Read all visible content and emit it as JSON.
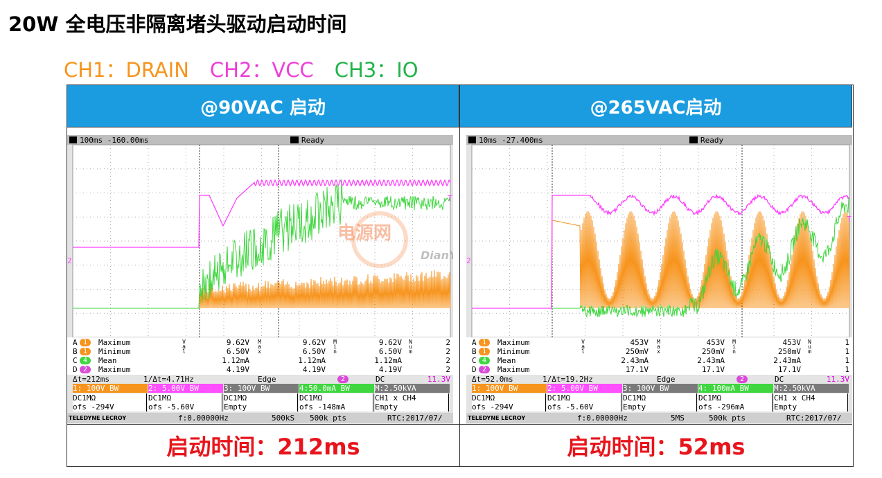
{
  "header": {
    "title": "20W 全电压非隔离堵头驱动启动时间"
  },
  "legend": [
    {
      "label": "CH1：DRAIN",
      "color": "#f7941d"
    },
    {
      "label": "CH2：VCC",
      "color": "#ee3fd9"
    },
    {
      "label": "CH3：IO",
      "color": "#22b34a"
    }
  ],
  "table": {
    "columns": [
      "@90VAC 启动",
      "@265VAC启动"
    ],
    "footer": [
      "启动时间：212ms",
      "启动时间：52ms"
    ]
  },
  "watermark": {
    "cn": "电源网",
    "en": "DianYuan.com"
  },
  "scopes": [
    {
      "timebase": "100ms -160.00ms",
      "status": "Ready",
      "markers": [
        "2",
        "T"
      ],
      "side_labels": [
        "Val",
        "Max",
        "Min",
        "Num"
      ],
      "meas": [
        [
          "A",
          "1",
          "Maximum",
          "9.62V",
          "9.62V",
          "9.62V",
          "2"
        ],
        [
          "B",
          "1",
          "Minimum",
          "6.50V",
          "6.50V",
          "6.50V",
          "2"
        ],
        [
          "C",
          "4",
          "Mean",
          "1.12mA",
          "1.12mA",
          "1.12mA",
          "2"
        ],
        [
          "D",
          "2",
          "Maximum",
          "4.19V",
          "4.19V",
          "4.19V",
          "2"
        ]
      ],
      "cursor": [
        "Δt=212ms",
        "1/Δt=4.71Hz",
        "Edge",
        "2",
        "DC",
        "11.3V"
      ],
      "channels": [
        {
          "label": "1: 100V BW",
          "color": "#f7941d"
        },
        {
          "label": "2: 5.00V BW",
          "color": "#ff4fff"
        },
        {
          "label": "3: 100V BW",
          "color": "#7a7a7a"
        },
        {
          "label": "4:50.0mA BW",
          "color": "#3fd63f"
        },
        {
          "label": "M:2.50kVA",
          "color": "#7a7a7a"
        }
      ],
      "settings": [
        [
          "DC1MΩ",
          "ofs -294V"
        ],
        [
          "DC1MΩ",
          "ofs -5.60V"
        ],
        [
          "DC1MΩ",
          "Empty"
        ],
        [
          "DC1MΩ",
          "ofs -148mA"
        ],
        [
          "CH1 x CH4",
          "Empty"
        ]
      ],
      "bottom": [
        "TELEDYNE LECROY",
        "f:0.00000Hz",
        "500kS",
        "500k pts",
        "RTC:2017/07/"
      ]
    },
    {
      "timebase": "10ms -27.400ms",
      "status": "Ready",
      "markers": [
        "2",
        "T"
      ],
      "side_labels": [
        "Val",
        "Max",
        "Min",
        "Num"
      ],
      "meas": [
        [
          "A",
          "1",
          "Maximum",
          "453V",
          "453V",
          "453V",
          "1"
        ],
        [
          "B",
          "1",
          "Minimum",
          "250mV",
          "250mV",
          "250mV",
          "1"
        ],
        [
          "C",
          "4",
          "Mean",
          "2.43mA",
          "2.43mA",
          "2.43mA",
          "1"
        ],
        [
          "D",
          "2",
          "Maximum",
          "17.1V",
          "17.1V",
          "17.1V",
          "1"
        ]
      ],
      "cursor": [
        "Δt=52.0ms",
        "1/Δt=19.2Hz",
        "Edge",
        "2",
        "DC",
        "11.3V"
      ],
      "channels": [
        {
          "label": "1: 100V BW",
          "color": "#f7941d"
        },
        {
          "label": "2: 5.00V BW",
          "color": "#ff4fff"
        },
        {
          "label": "3: 100V BW",
          "color": "#7a7a7a"
        },
        {
          "label": "4: 100mA BW",
          "color": "#3fd63f"
        },
        {
          "label": "M:2.50kVA",
          "color": "#7a7a7a"
        }
      ],
      "settings": [
        [
          "DC1MΩ",
          "ofs -294V"
        ],
        [
          "DC1MΩ",
          "ofs -5.60V"
        ],
        [
          "DC1MΩ",
          "Empty"
        ],
        [
          "DC1MΩ",
          "ofs -296mA"
        ],
        [
          "CH1 x CH4",
          "Empty"
        ]
      ],
      "bottom": [
        "TELEDYNE LECROY",
        "f:0.00000Hz",
        "5MS",
        "500k pts",
        "RTC:2017/07/"
      ]
    }
  ]
}
